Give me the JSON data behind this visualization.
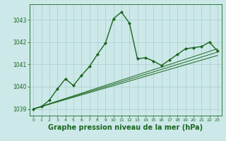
{
  "background_color": "#cce8e8",
  "grid_color": "#aacccc",
  "line_color": "#1a6620",
  "marker_color": "#1a6620",
  "xlabel": "Graphe pression niveau de la mer (hPa)",
  "xlabel_fontsize": 7,
  "xlim": [
    -0.5,
    23.5
  ],
  "ylim": [
    1038.7,
    1043.7
  ],
  "yticks": [
    1039,
    1040,
    1041,
    1042,
    1043
  ],
  "xticks": [
    0,
    1,
    2,
    3,
    4,
    5,
    6,
    7,
    8,
    9,
    10,
    11,
    12,
    13,
    14,
    15,
    16,
    17,
    18,
    19,
    20,
    21,
    22,
    23
  ],
  "series": [
    {
      "x": [
        0,
        1,
        2,
        3,
        4,
        5,
        6,
        7,
        8,
        9,
        10,
        11,
        12,
        13,
        14,
        15,
        16,
        17,
        18,
        19,
        20,
        21,
        22,
        23
      ],
      "y": [
        1039.0,
        1039.1,
        1039.4,
        1039.9,
        1040.35,
        1040.05,
        1040.5,
        1040.9,
        1041.45,
        1041.95,
        1043.05,
        1043.35,
        1042.85,
        1041.25,
        1041.3,
        1041.15,
        1040.95,
        1041.2,
        1041.45,
        1041.7,
        1041.75,
        1041.8,
        1042.0,
        1041.6
      ],
      "linestyle": "-",
      "marker": "D",
      "markersize": 2.0,
      "linewidth": 1.0,
      "zorder": 5
    },
    {
      "x": [
        0,
        23
      ],
      "y": [
        1039.0,
        1041.7
      ],
      "linestyle": "-",
      "marker": null,
      "markersize": 0,
      "linewidth": 0.7,
      "zorder": 3
    },
    {
      "x": [
        0,
        23
      ],
      "y": [
        1039.0,
        1041.55
      ],
      "linestyle": "-",
      "marker": null,
      "markersize": 0,
      "linewidth": 0.7,
      "zorder": 3
    },
    {
      "x": [
        0,
        23
      ],
      "y": [
        1039.0,
        1041.4
      ],
      "linestyle": "-",
      "marker": null,
      "markersize": 0,
      "linewidth": 0.7,
      "zorder": 3
    }
  ]
}
